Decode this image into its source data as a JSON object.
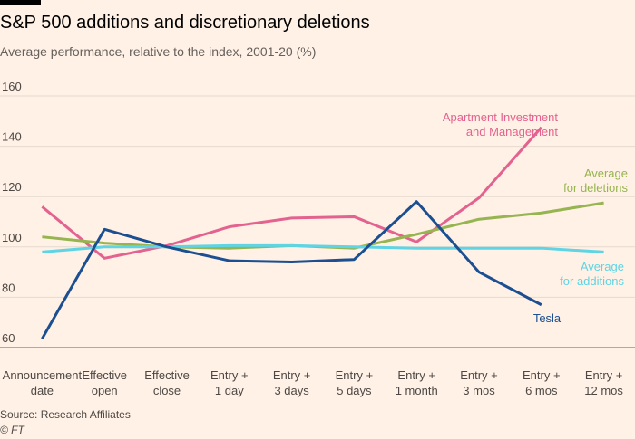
{
  "chart_data": {
    "type": "line",
    "title": "S&P 500 additions and discretionary deletions",
    "subtitle": "Average performance, relative to the index, 2001-20 (%)",
    "source": "Source: Research Affiliates",
    "credit": "© FT",
    "categories": [
      [
        "Announcement",
        "date"
      ],
      [
        "Effective",
        "open"
      ],
      [
        "Effective",
        "close"
      ],
      [
        "Entry +",
        "1 day"
      ],
      [
        "Entry +",
        "3 days"
      ],
      [
        "Entry +",
        "5 days"
      ],
      [
        "Entry +",
        "1 month"
      ],
      [
        "Entry +",
        "3 mos"
      ],
      [
        "Entry +",
        "6 mos"
      ],
      [
        "Entry +",
        "12 mos"
      ]
    ],
    "series": [
      {
        "name": [
          "Apartment Investment",
          "and Management"
        ],
        "color": "#e3628f",
        "values": [
          116,
          95.5,
          100.5,
          108,
          111.5,
          112,
          102,
          119.5,
          147.5,
          null
        ]
      },
      {
        "name": [
          "Average",
          "for deletions"
        ],
        "color": "#96b450",
        "values": [
          104,
          101.5,
          100,
          99.5,
          100.5,
          99.5,
          105,
          111,
          113.5,
          117.5
        ]
      },
      {
        "name": [
          "Average",
          "for additions"
        ],
        "color": "#5ed4e4",
        "values": [
          98,
          100,
          100,
          100.5,
          100.5,
          100,
          99.5,
          99.5,
          99.5,
          98
        ]
      },
      {
        "name": [
          "Tesla"
        ],
        "color": "#1b4f91",
        "values": [
          63.5,
          107,
          100,
          94.5,
          94,
          95,
          118,
          90,
          77,
          null
        ]
      }
    ],
    "ylim": [
      60,
      160
    ],
    "yticks": [
      60,
      80,
      100,
      120,
      140,
      160
    ],
    "grid": true
  }
}
